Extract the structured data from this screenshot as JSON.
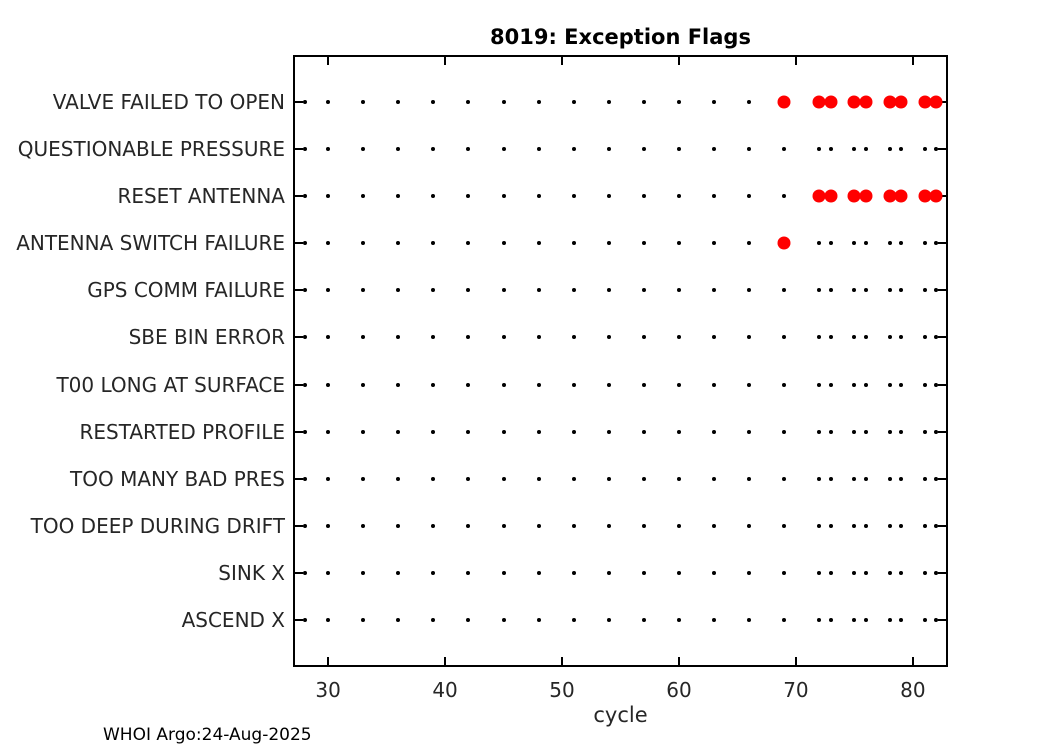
{
  "footer": "WHOI Argo:24-Aug-2025",
  "chart_data": {
    "type": "scatter",
    "title": "8019: Exception Flags",
    "xlabel": "cycle",
    "xlim": [
      27,
      83
    ],
    "xticks": [
      30,
      40,
      50,
      60,
      70,
      80
    ],
    "grid": false,
    "box": true,
    "tick_direction": "in",
    "flags": [
      "VALVE FAILED TO OPEN",
      "QUESTIONABLE PRESSURE",
      "RESET ANTENNA",
      "ANTENNA SWITCH FAILURE",
      "GPS COMM FAILURE",
      "SBE BIN ERROR",
      "T00 LONG AT SURFACE",
      "RESTARTED PROFILE",
      "TOO MANY BAD PRES",
      "TOO DEEP DURING DRIFT",
      "SINK X",
      "ASCEND X"
    ],
    "cycles_observed": [
      28,
      30,
      33,
      36,
      39,
      42,
      45,
      48,
      51,
      54,
      57,
      60,
      63,
      66,
      69,
      72,
      73,
      75,
      76,
      78,
      79,
      81,
      82
    ],
    "observed_marker_color": "#000000",
    "exception_marker_color": "#ff0000",
    "exceptions": [
      {
        "flag": "VALVE FAILED TO OPEN",
        "cycles": [
          69,
          72,
          73,
          75,
          76,
          78,
          79,
          81,
          82
        ]
      },
      {
        "flag": "RESET ANTENNA",
        "cycles": [
          72,
          73,
          75,
          76,
          78,
          79,
          81,
          82
        ]
      },
      {
        "flag": "ANTENNA SWITCH FAILURE",
        "cycles": [
          69
        ]
      }
    ]
  }
}
